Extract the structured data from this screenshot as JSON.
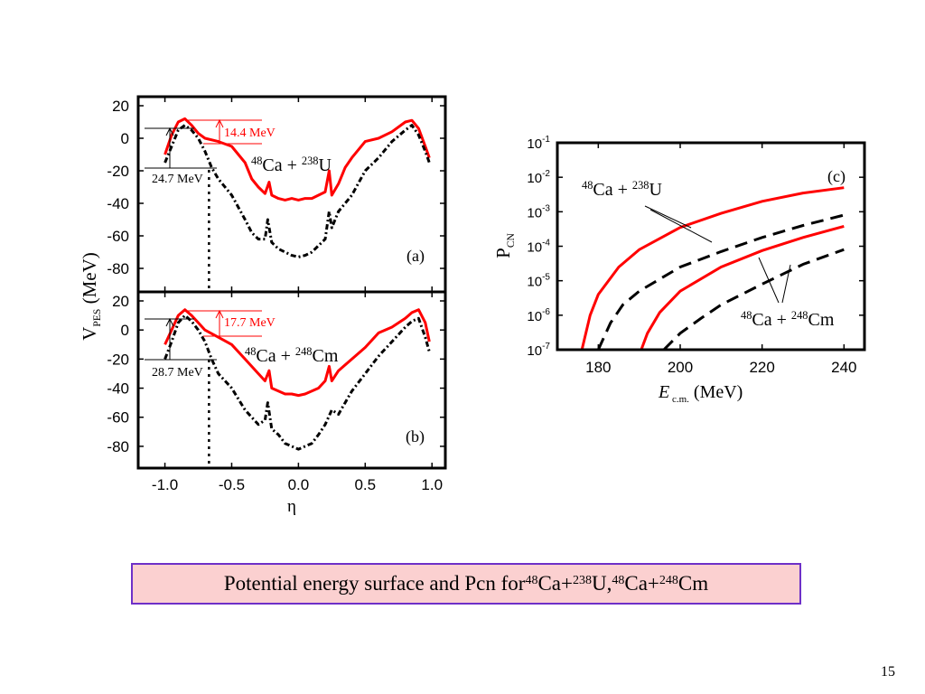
{
  "chart_data": [
    {
      "type": "line",
      "panel": "(a)",
      "reaction": {
        "a1": "48",
        "e1": "Ca + ",
        "a2": "238",
        "e2": "U"
      },
      "ylabel": "V_PES (MeV)",
      "ylim": [
        -90,
        20
      ],
      "yticks": [
        20,
        0,
        -20,
        -40,
        -60,
        -80
      ],
      "xlim": [
        -1.2,
        1.1
      ],
      "annotations": {
        "red": "14.4 MeV",
        "black": "24.7 MeV",
        "dotted_x": -0.67
      },
      "series": [
        {
          "color": "#ff0000",
          "style": "solid",
          "x": [
            -1.0,
            -0.95,
            -0.9,
            -0.85,
            -0.8,
            -0.75,
            -0.7,
            -0.6,
            -0.5,
            -0.4,
            -0.35,
            -0.3,
            -0.25,
            -0.22,
            -0.2,
            -0.15,
            -0.1,
            -0.05,
            0.0,
            0.05,
            0.1,
            0.15,
            0.2,
            0.23,
            0.25,
            0.3,
            0.35,
            0.4,
            0.5,
            0.6,
            0.7,
            0.8,
            0.85,
            0.9,
            0.95,
            0.98
          ],
          "y": [
            -10,
            2,
            10,
            12,
            8,
            3,
            0,
            -2,
            -5,
            -15,
            -25,
            -30,
            -34,
            -27,
            -35,
            -37,
            -38,
            -37,
            -38,
            -37,
            -37,
            -35,
            -33,
            -20,
            -35,
            -28,
            -18,
            -12,
            -2,
            0,
            4,
            10,
            11,
            6,
            -5,
            -12
          ]
        },
        {
          "color": "#000000",
          "style": "dash-dot",
          "x": [
            -1.0,
            -0.95,
            -0.9,
            -0.85,
            -0.8,
            -0.75,
            -0.7,
            -0.65,
            -0.6,
            -0.5,
            -0.4,
            -0.35,
            -0.3,
            -0.25,
            -0.23,
            -0.2,
            -0.15,
            -0.1,
            -0.05,
            0.0,
            0.05,
            0.1,
            0.15,
            0.2,
            0.23,
            0.25,
            0.3,
            0.35,
            0.4,
            0.5,
            0.6,
            0.7,
            0.8,
            0.85,
            0.9,
            0.95,
            0.98
          ],
          "y": [
            -15,
            -5,
            5,
            8,
            5,
            0,
            -8,
            -18,
            -25,
            -35,
            -50,
            -58,
            -62,
            -62,
            -50,
            -64,
            -68,
            -70,
            -72,
            -73,
            -72,
            -70,
            -66,
            -62,
            -45,
            -55,
            -45,
            -40,
            -35,
            -20,
            -12,
            -2,
            5,
            8,
            2,
            -8,
            -15
          ]
        }
      ]
    },
    {
      "type": "line",
      "panel": "(b)",
      "reaction": {
        "a1": "48",
        "e1": "Ca + ",
        "a2": "248",
        "e2": "Cm"
      },
      "xlabel": "η",
      "ylim": [
        -90,
        20
      ],
      "yticks": [
        20,
        0,
        -20,
        -40,
        -60,
        -80
      ],
      "xlim": [
        -1.2,
        1.1
      ],
      "xticks": [
        "-1.0",
        "-0.5",
        "0.0",
        "0.5",
        "1.0"
      ],
      "annotations": {
        "red": "17.7 MeV",
        "black": "28.7 MeV",
        "dotted_x": -0.67
      },
      "series": [
        {
          "color": "#ff0000",
          "style": "solid",
          "x": [
            -1.0,
            -0.95,
            -0.9,
            -0.85,
            -0.8,
            -0.75,
            -0.7,
            -0.6,
            -0.5,
            -0.4,
            -0.3,
            -0.25,
            -0.22,
            -0.2,
            -0.15,
            -0.1,
            -0.05,
            0.0,
            0.05,
            0.1,
            0.15,
            0.2,
            0.23,
            0.25,
            0.3,
            0.4,
            0.5,
            0.6,
            0.7,
            0.8,
            0.85,
            0.9,
            0.95,
            0.98
          ],
          "y": [
            -10,
            0,
            10,
            14,
            10,
            5,
            0,
            -5,
            -10,
            -20,
            -30,
            -35,
            -28,
            -40,
            -42,
            -44,
            -44,
            -45,
            -44,
            -42,
            -40,
            -35,
            -25,
            -35,
            -28,
            -20,
            -12,
            -2,
            2,
            8,
            12,
            14,
            5,
            -8
          ]
        },
        {
          "color": "#000000",
          "style": "dash-dot",
          "x": [
            -1.0,
            -0.95,
            -0.9,
            -0.85,
            -0.8,
            -0.75,
            -0.7,
            -0.65,
            -0.6,
            -0.5,
            -0.4,
            -0.3,
            -0.25,
            -0.23,
            -0.2,
            -0.15,
            -0.1,
            -0.05,
            0.0,
            0.05,
            0.1,
            0.15,
            0.2,
            0.25,
            0.3,
            0.35,
            0.4,
            0.5,
            0.6,
            0.7,
            0.8,
            0.85,
            0.9,
            0.95,
            0.98
          ],
          "y": [
            -20,
            -8,
            5,
            10,
            6,
            0,
            -8,
            -20,
            -30,
            -40,
            -55,
            -65,
            -62,
            -50,
            -68,
            -72,
            -78,
            -80,
            -82,
            -80,
            -78,
            -72,
            -65,
            -55,
            -58,
            -50,
            -42,
            -30,
            -18,
            -8,
            2,
            6,
            8,
            -5,
            -15
          ]
        }
      ]
    },
    {
      "type": "line",
      "panel": "(c)",
      "ylabel": "P_CN",
      "xlabel": "E c.m. (MeV)",
      "yscale": "log",
      "ylim": [
        1e-07,
        0.1
      ],
      "yticks": [
        -1,
        -2,
        -3,
        -4,
        -5,
        -6,
        -7
      ],
      "xlim": [
        170,
        245
      ],
      "xticks": [
        180,
        200,
        220,
        240
      ],
      "labels": {
        "upper": {
          "a1": "48",
          "e1": "Ca + ",
          "a2": "238",
          "e2": "U"
        },
        "lower": {
          "a1": "48",
          "e1": "Ca + ",
          "a2": "248",
          "e2": "Cm"
        }
      },
      "series": [
        {
          "color": "#ff0000",
          "style": "solid",
          "x": [
            176,
            178,
            180,
            185,
            190,
            200,
            210,
            220,
            230,
            240
          ],
          "y": [
            1e-07,
            1e-06,
            4e-06,
            2.5e-05,
            8e-05,
            0.00035,
            0.0009,
            0.002,
            0.0035,
            0.005
          ]
        },
        {
          "color": "#000000",
          "style": "dashed",
          "x": [
            180,
            183,
            186,
            190,
            200,
            210,
            220,
            230,
            240
          ],
          "y": [
            1e-07,
            6e-07,
            2e-06,
            5e-06,
            2.5e-05,
            7e-05,
            0.00018,
            0.0004,
            0.0008
          ]
        },
        {
          "color": "#ff0000",
          "style": "solid",
          "x": [
            190.5,
            192,
            195,
            200,
            210,
            220,
            230,
            240
          ],
          "y": [
            1e-07,
            3e-07,
            1.2e-06,
            5e-06,
            2.5e-05,
            7.5e-05,
            0.00018,
            0.00038
          ]
        },
        {
          "color": "#000000",
          "style": "dashed",
          "x": [
            196,
            200,
            205,
            210,
            220,
            230,
            240
          ],
          "y": [
            1e-07,
            3e-07,
            8e-07,
            2e-06,
            8e-06,
            3e-05,
            8e-05
          ]
        }
      ]
    }
  ],
  "caption": {
    "text1": "Potential energy surface and Pcn for  ",
    "iso1": "48",
    "el1": "Ca+",
    "iso2": "238",
    "el2": "U, ",
    "iso3": "48",
    "el3": "Ca+",
    "iso4": "248",
    "el4": "Cm"
  },
  "page_number": "15"
}
